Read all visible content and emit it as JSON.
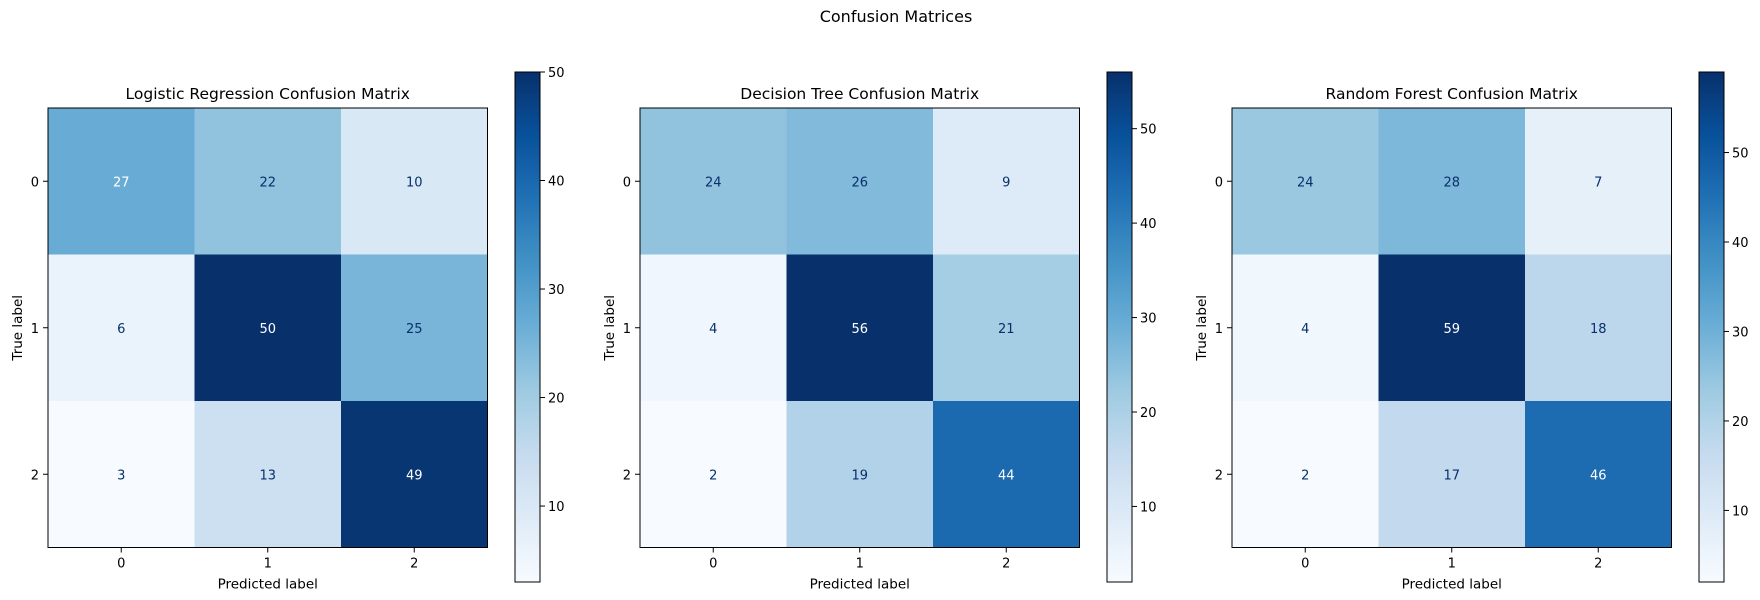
{
  "suptitle": "Confusion Matrices",
  "colormap": "Blues",
  "colormap_stops": [
    "#f7fbff",
    "#deebf7",
    "#c6dbef",
    "#9ecae1",
    "#6baed6",
    "#4292c6",
    "#2171b5",
    "#08519c",
    "#08306b"
  ],
  "text_colors": {
    "dark": "#08306b",
    "light": "#ffffff"
  },
  "chart_data": [
    {
      "type": "heatmap",
      "title": "Logistic Regression Confusion Matrix",
      "xlabel": "Predicted label",
      "ylabel": "True label",
      "x_categories": [
        "0",
        "1",
        "2"
      ],
      "y_categories": [
        "0",
        "1",
        "2"
      ],
      "values": [
        [
          27,
          22,
          10
        ],
        [
          6,
          50,
          25
        ],
        [
          3,
          13,
          49
        ]
      ],
      "colorbar": {
        "vmin": 3,
        "vmax": 50,
        "ticks": [
          10,
          20,
          30,
          40,
          50
        ]
      }
    },
    {
      "type": "heatmap",
      "title": "Decision Tree Confusion Matrix",
      "xlabel": "Predicted label",
      "ylabel": "True label",
      "x_categories": [
        "0",
        "1",
        "2"
      ],
      "y_categories": [
        "0",
        "1",
        "2"
      ],
      "values": [
        [
          24,
          26,
          9
        ],
        [
          4,
          56,
          21
        ],
        [
          2,
          19,
          44
        ]
      ],
      "colorbar": {
        "vmin": 2,
        "vmax": 56,
        "ticks": [
          10,
          20,
          30,
          40,
          50
        ]
      }
    },
    {
      "type": "heatmap",
      "title": "Random Forest Confusion Matrix",
      "xlabel": "Predicted label",
      "ylabel": "True label",
      "x_categories": [
        "0",
        "1",
        "2"
      ],
      "y_categories": [
        "0",
        "1",
        "2"
      ],
      "values": [
        [
          24,
          28,
          7
        ],
        [
          4,
          59,
          18
        ],
        [
          2,
          17,
          46
        ]
      ],
      "colorbar": {
        "vmin": 2,
        "vmax": 59,
        "ticks": [
          10,
          20,
          30,
          40,
          50
        ]
      }
    }
  ]
}
